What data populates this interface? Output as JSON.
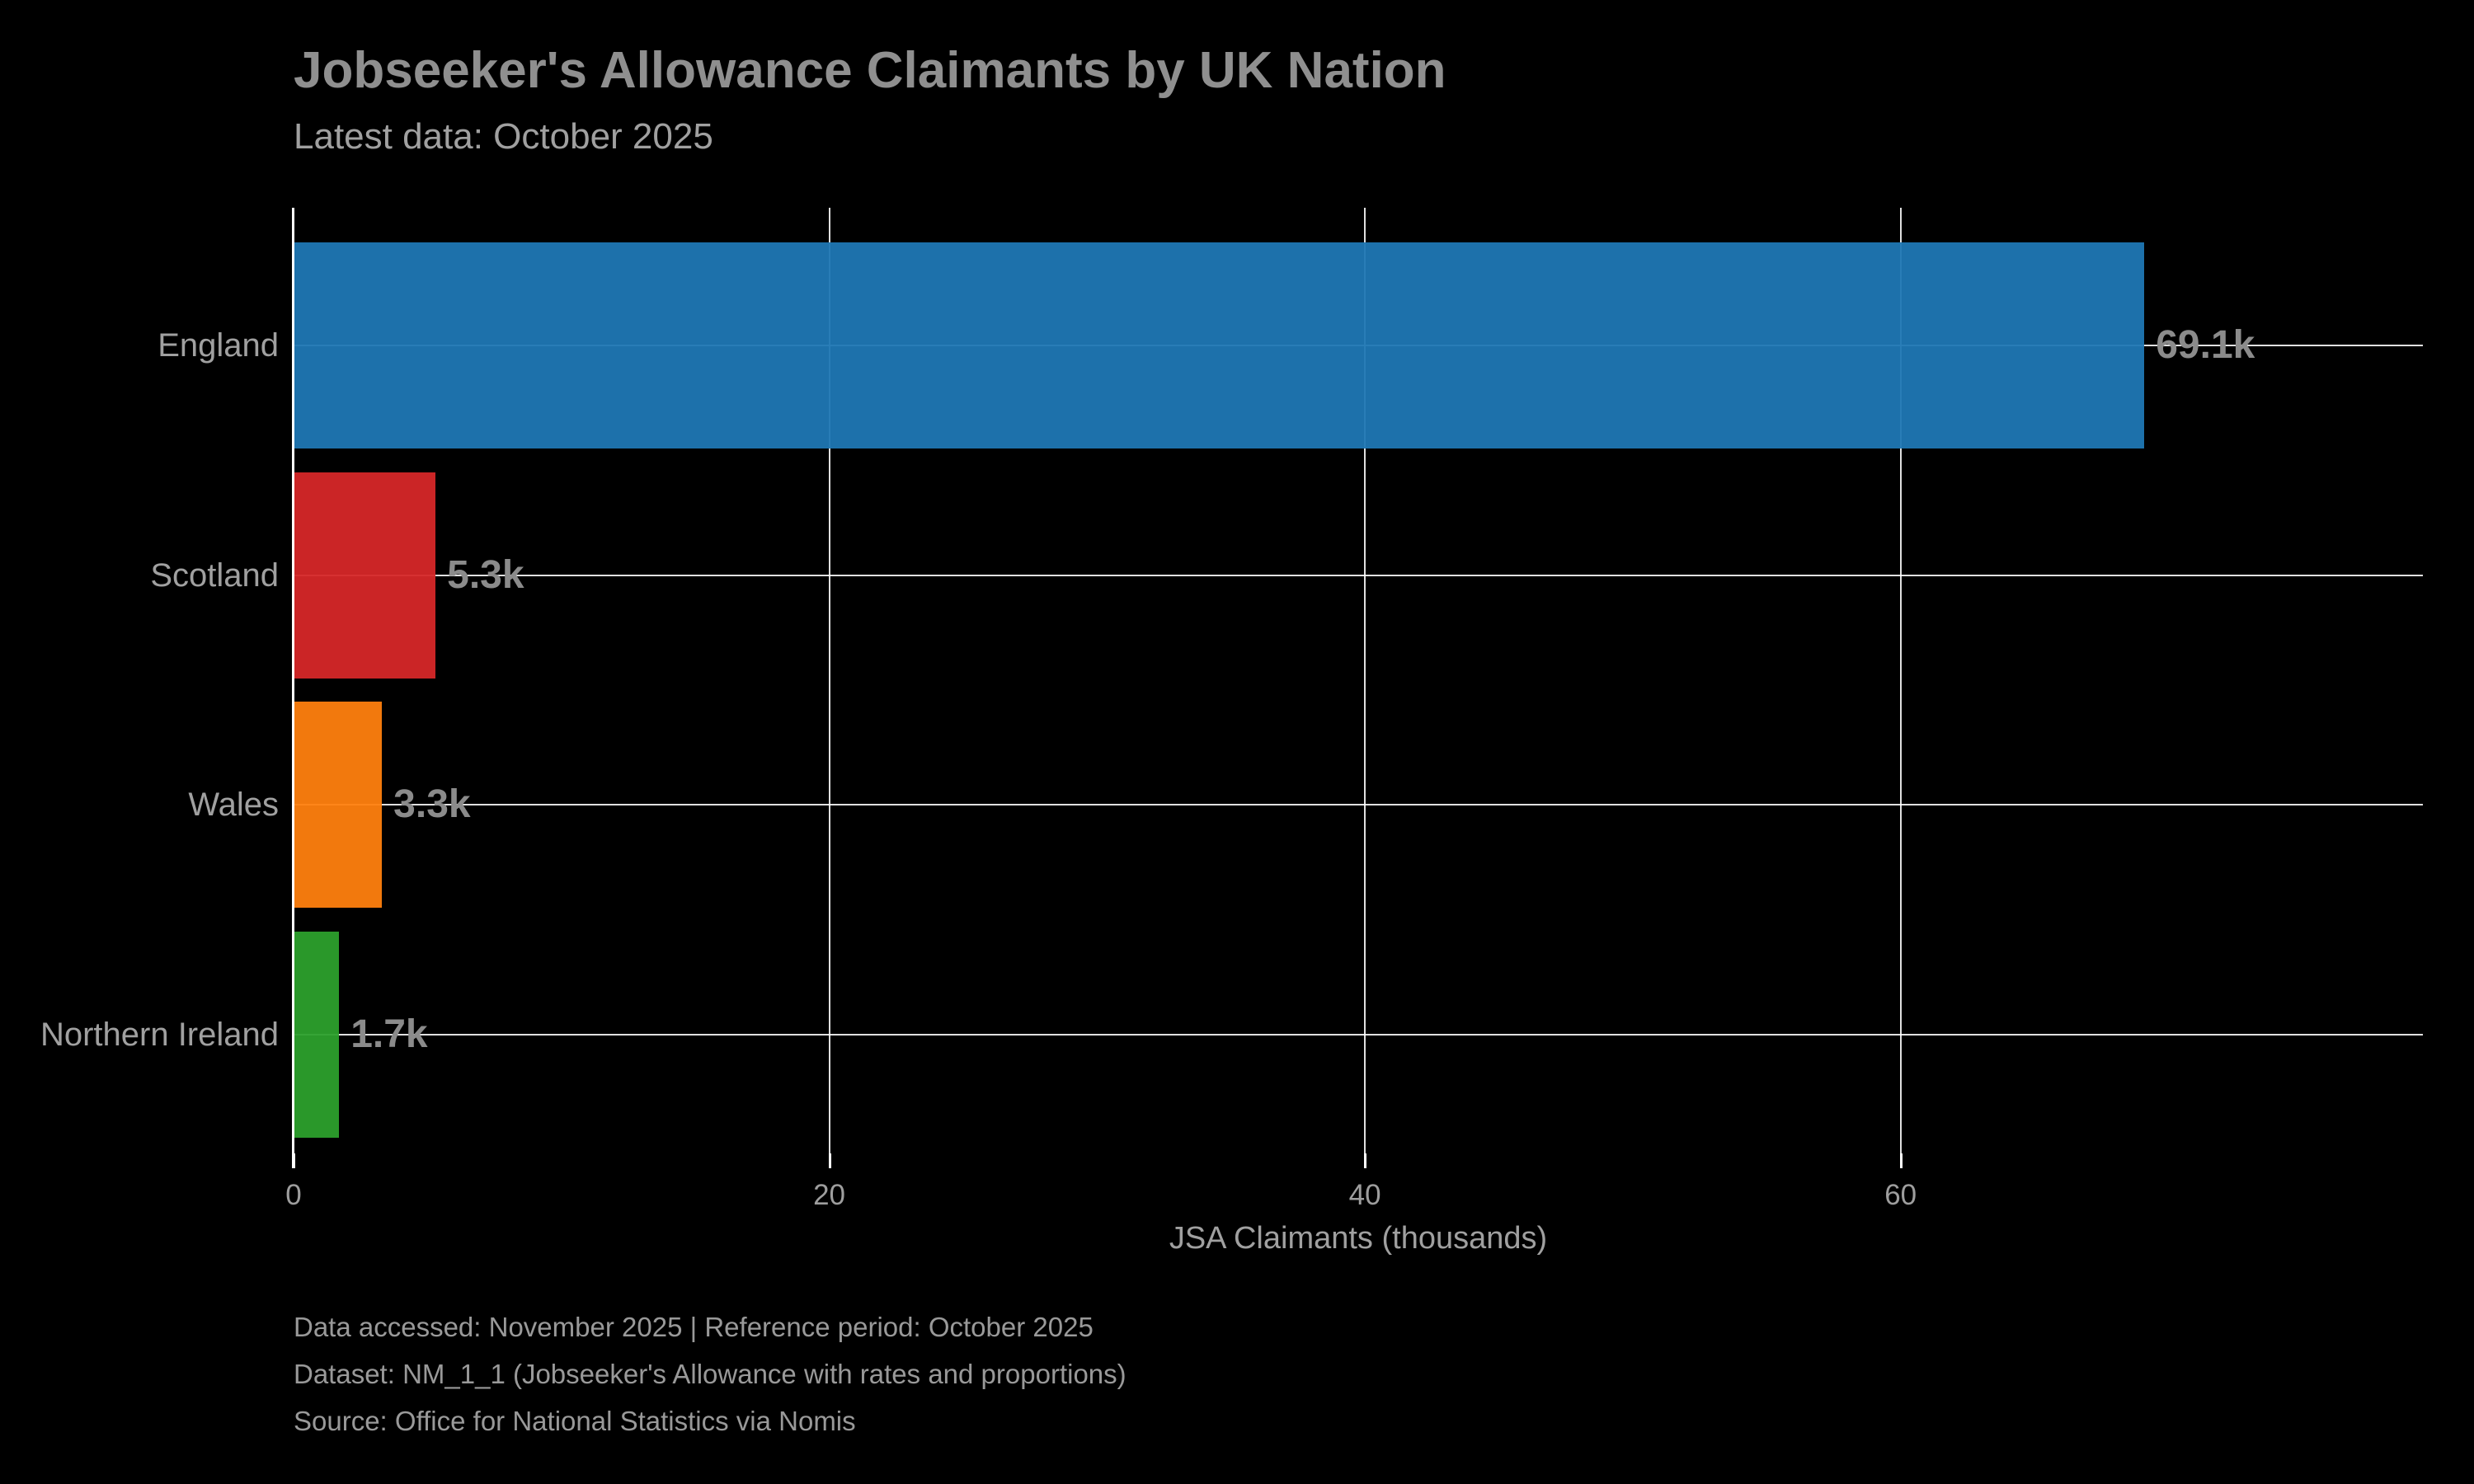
{
  "figure": {
    "background": "#000000",
    "footer_lines": [
      "Data accessed: November 2025 | Reference period: October 2025",
      "Dataset: NM_1_1 (Jobseeker's Allowance with rates and proportions)",
      "Source: Office for National Statistics via Nomis"
    ]
  },
  "chart_data": {
    "type": "bar",
    "orientation": "horizontal",
    "title": "Jobseeker's Allowance Claimants by UK Nation",
    "subtitle": "Latest data: October 2025",
    "categories": [
      "England",
      "Scotland",
      "Wales",
      "Northern Ireland"
    ],
    "values": [
      69.1,
      5.3,
      3.3,
      1.7
    ],
    "value_labels": [
      "69.1k",
      "5.3k",
      "3.3k",
      "1.7k"
    ],
    "bar_colors": [
      "#1f77b4",
      "#d62728",
      "#ff7f0e",
      "#2ca02c"
    ],
    "xlabel": "JSA Claimants (thousands)",
    "xticks": [
      0,
      20,
      40,
      60
    ],
    "xtick_labels": [
      "0",
      "20",
      "40",
      "60"
    ],
    "xlim": [
      0,
      79.5
    ],
    "grid": true,
    "grid_color": "#ffffff",
    "axis_color": "#ffffff",
    "text_color": "#a0a0a0",
    "title_color": "#8f8f8f",
    "value_label_color": "#8b8b8b",
    "legend": "none"
  }
}
